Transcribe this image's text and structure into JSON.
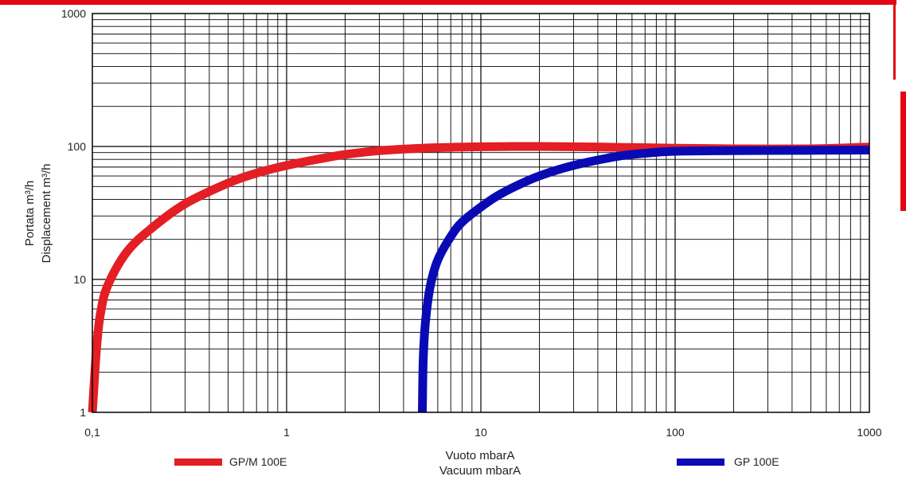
{
  "frame": {
    "accent_color": "#e30613"
  },
  "chart_data": {
    "type": "line",
    "x_scale": "log",
    "y_scale": "log",
    "xlim": [
      0.1,
      1000
    ],
    "ylim": [
      1,
      1000
    ],
    "grid": true,
    "x_tick_labels": [
      "0,1",
      "1",
      "10",
      "100",
      "1000"
    ],
    "y_tick_labels": [
      "1",
      "10",
      "100",
      "1000"
    ],
    "xlabel": [
      "Vuoto mbarA",
      "Vacuum mbarA"
    ],
    "ylabel": [
      "Portata m³/h",
      "Displacement m³/h"
    ],
    "legend_position": "bottom",
    "series": [
      {
        "name": "GP/M 100E",
        "color": "#e31e24",
        "x": [
          0.1,
          0.105,
          0.11,
          0.12,
          0.15,
          0.2,
          0.3,
          0.5,
          0.7,
          1,
          1.5,
          2,
          3,
          5,
          7,
          10,
          15,
          20,
          30,
          50,
          70,
          100,
          200,
          500,
          1000
        ],
        "y": [
          1,
          3,
          5.5,
          9,
          16,
          24,
          37,
          53,
          63,
          72,
          81,
          87,
          93,
          97,
          98.5,
          99.5,
          100,
          100,
          99.5,
          98.5,
          98,
          97,
          96,
          96,
          99
        ]
      },
      {
        "name": "GP 100E",
        "color": "#0a0ab4",
        "x": [
          5,
          5.05,
          5.2,
          5.5,
          6,
          7,
          8,
          10,
          12,
          15,
          20,
          30,
          50,
          70,
          100,
          200,
          500,
          1000
        ],
        "y": [
          1,
          2.5,
          5,
          9,
          14,
          21,
          27,
          35,
          42,
          50,
          60,
          72,
          84,
          89,
          92,
          93,
          93.5,
          94
        ]
      }
    ]
  }
}
